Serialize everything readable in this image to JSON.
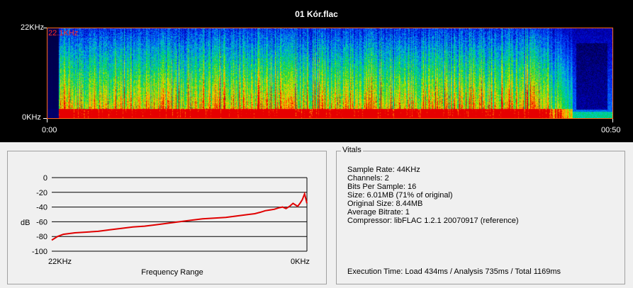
{
  "spectrogram": {
    "file_title": "01 Kór.flac",
    "freq_top_label": "22KHz",
    "freq_bottom_label": "0KHz",
    "max_freq_label": "22.1KHz",
    "time_start_label": "0:00",
    "time_end_label": "00:50"
  },
  "graph": {
    "y_ticks": [
      "0",
      "-20",
      "-40",
      "-60",
      "-80",
      "-100"
    ],
    "y_axis_label": "dB",
    "x_left_label": "22KHz",
    "x_right_label": "0KHz",
    "x_axis_title": "Frequency Range"
  },
  "vitals": {
    "title": "Vitals",
    "sample_rate": "Sample Rate: 44KHz",
    "channels": "Channels: 2",
    "bits_per_sample": "Bits Per Sample: 16",
    "size": "Size: 6.01MB (71% of original)",
    "original_size": "Original Size: 8.44MB",
    "average_bitrate": "Average Bitrate: 1",
    "compressor": "Compressor: libFLAC 1.2.1 20070917 (reference)",
    "execution_time": "Execution Time: Load 434ms / Analysis 735ms / Total 1169ms"
  },
  "colors": {
    "curve": "#e00000",
    "frame": "#ff6a1a"
  },
  "chart_data": {
    "type": "line",
    "x_unit": "kHz",
    "xlim": [
      22,
      0
    ],
    "ylim": [
      -100,
      0
    ],
    "y_ticks": [
      0,
      -20,
      -40,
      -60,
      -80,
      -100
    ],
    "grid": true,
    "xlabel": "Frequency Range",
    "ylabel": "dB",
    "series": [
      {
        "x": [
          22,
          21.5,
          21,
          20,
          19,
          18,
          17,
          16,
          15,
          14,
          13,
          12,
          11,
          10,
          9,
          8,
          7,
          6,
          5,
          4.5,
          4,
          3.6,
          3.2,
          2.8,
          2.4,
          2.1,
          1.8,
          1.5,
          1.2,
          1.0,
          0.8,
          0.6,
          0.4,
          0.2,
          0
        ],
        "y": [
          -85,
          -80,
          -77,
          -75,
          -74,
          -73,
          -71,
          -69,
          -67,
          -66,
          -64,
          -62,
          -60,
          -58,
          -56,
          -55,
          -54,
          -52,
          -50,
          -49,
          -47,
          -45,
          -44,
          -43,
          -41,
          -40,
          -42,
          -39,
          -35,
          -37,
          -39,
          -35,
          -30,
          -22,
          -35
        ]
      }
    ]
  }
}
